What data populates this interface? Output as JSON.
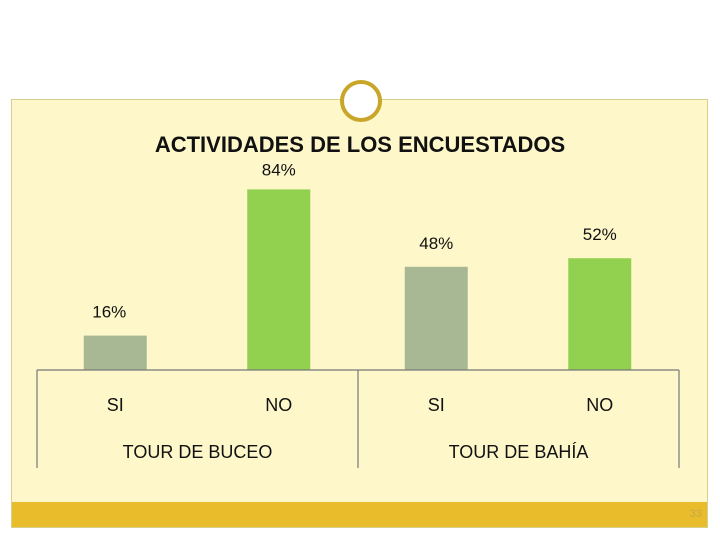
{
  "slide": {
    "page_number": "33",
    "colors": {
      "frame": "#d8cf8a",
      "content_bg": "#fdf7c9",
      "footer": "#e8bc2a",
      "ring": "#c9a52a"
    }
  },
  "chart_data": {
    "type": "bar",
    "title": "ACTIVIDADES DE LOS ENCUESTADOS",
    "groups": [
      "TOUR DE BUCEO",
      "TOUR DE BAHÍA"
    ],
    "categories": [
      "SI",
      "NO",
      "SI",
      "NO"
    ],
    "values": [
      16,
      84,
      48,
      52
    ],
    "value_labels": [
      "16%",
      "84%",
      "48%",
      "52%"
    ],
    "bar_colors": [
      "#a8b894",
      "#92d050",
      "#a8b894",
      "#92d050"
    ],
    "ylim": [
      0,
      100
    ],
    "xlabel": "",
    "ylabel": "",
    "grid": false,
    "legend": "none"
  }
}
